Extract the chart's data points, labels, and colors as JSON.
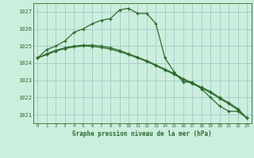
{
  "title": "Graphe pression niveau de la mer (hPa)",
  "background_color": "#cceedd",
  "grid_color": "#aacccc",
  "line_color": "#2d6b2d",
  "xlim": [
    -0.5,
    23.5
  ],
  "ylim": [
    1020.5,
    1027.5
  ],
  "yticks": [
    1021,
    1022,
    1023,
    1024,
    1025,
    1026,
    1027
  ],
  "xticks": [
    0,
    1,
    2,
    3,
    4,
    5,
    6,
    7,
    8,
    9,
    10,
    11,
    12,
    13,
    14,
    15,
    16,
    17,
    18,
    19,
    20,
    21,
    22,
    23
  ],
  "series1": {
    "x": [
      0,
      1,
      2,
      3,
      4,
      5,
      6,
      7,
      8,
      9,
      10,
      11,
      12,
      13,
      14,
      15,
      16,
      17,
      18,
      19,
      20,
      21,
      22,
      23
    ],
    "y": [
      1024.3,
      1024.8,
      1025.0,
      1025.3,
      1025.8,
      1026.0,
      1026.3,
      1026.5,
      1026.6,
      1027.1,
      1027.2,
      1026.9,
      1026.9,
      1026.3,
      1024.3,
      1023.5,
      1022.9,
      1022.9,
      1022.5,
      1022.0,
      1021.5,
      1021.2,
      1021.2,
      1020.8
    ]
  },
  "series2": {
    "x": [
      0,
      1,
      2,
      3,
      4,
      5,
      6,
      7,
      8,
      9,
      10,
      11,
      12,
      13,
      14,
      15,
      16,
      17,
      18,
      19,
      20,
      21,
      22,
      23
    ],
    "y": [
      1024.3,
      1024.55,
      1024.75,
      1024.9,
      1025.0,
      1025.05,
      1025.05,
      1025.0,
      1024.9,
      1024.75,
      1024.55,
      1024.35,
      1024.15,
      1023.9,
      1023.65,
      1023.4,
      1023.1,
      1022.85,
      1022.6,
      1022.35,
      1022.0,
      1021.7,
      1021.35,
      1020.8
    ]
  },
  "series3": {
    "x": [
      0,
      1,
      2,
      3,
      4,
      5,
      6,
      7,
      8,
      9,
      10,
      11,
      12,
      13,
      14,
      15,
      16,
      17,
      18,
      19,
      20,
      21,
      22,
      23
    ],
    "y": [
      1024.3,
      1024.5,
      1024.7,
      1024.85,
      1024.95,
      1025.0,
      1024.98,
      1024.92,
      1024.82,
      1024.67,
      1024.5,
      1024.3,
      1024.1,
      1023.85,
      1023.6,
      1023.35,
      1023.05,
      1022.8,
      1022.55,
      1022.28,
      1021.95,
      1021.63,
      1021.28,
      1020.8
    ]
  }
}
